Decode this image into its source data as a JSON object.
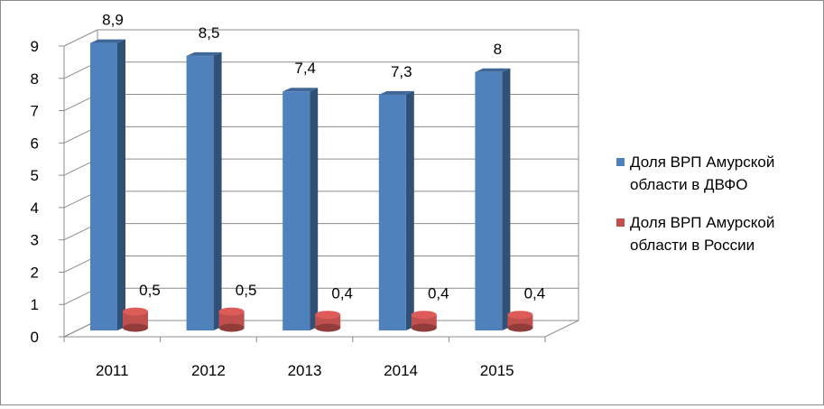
{
  "chart_data": {
    "type": "bar",
    "title": "",
    "xlabel": "",
    "ylabel": "",
    "categories": [
      "2011",
      "2012",
      "2013",
      "2014",
      "2015"
    ],
    "series": [
      {
        "name": "Доля ВРП Амурской области в ДВФО",
        "values": [
          8.9,
          8.5,
          7.4,
          7.3,
          8
        ],
        "labels": [
          "8,9",
          "8,5",
          "7,4",
          "7,3",
          "8"
        ],
        "color": "#4f81bd"
      },
      {
        "name": "Доля ВРП Амурской области в России",
        "values": [
          0.5,
          0.5,
          0.4,
          0.4,
          0.4
        ],
        "labels": [
          "0,5",
          "0,5",
          "0,4",
          "0,4",
          "0,4"
        ],
        "color": "#c0504d"
      }
    ],
    "ylim": [
      0,
      9
    ],
    "yticks": [
      "0",
      "1",
      "2",
      "3",
      "4",
      "5",
      "6",
      "7",
      "8",
      "9"
    ],
    "grid": true,
    "legend_position": "right",
    "style": "3d-column"
  }
}
